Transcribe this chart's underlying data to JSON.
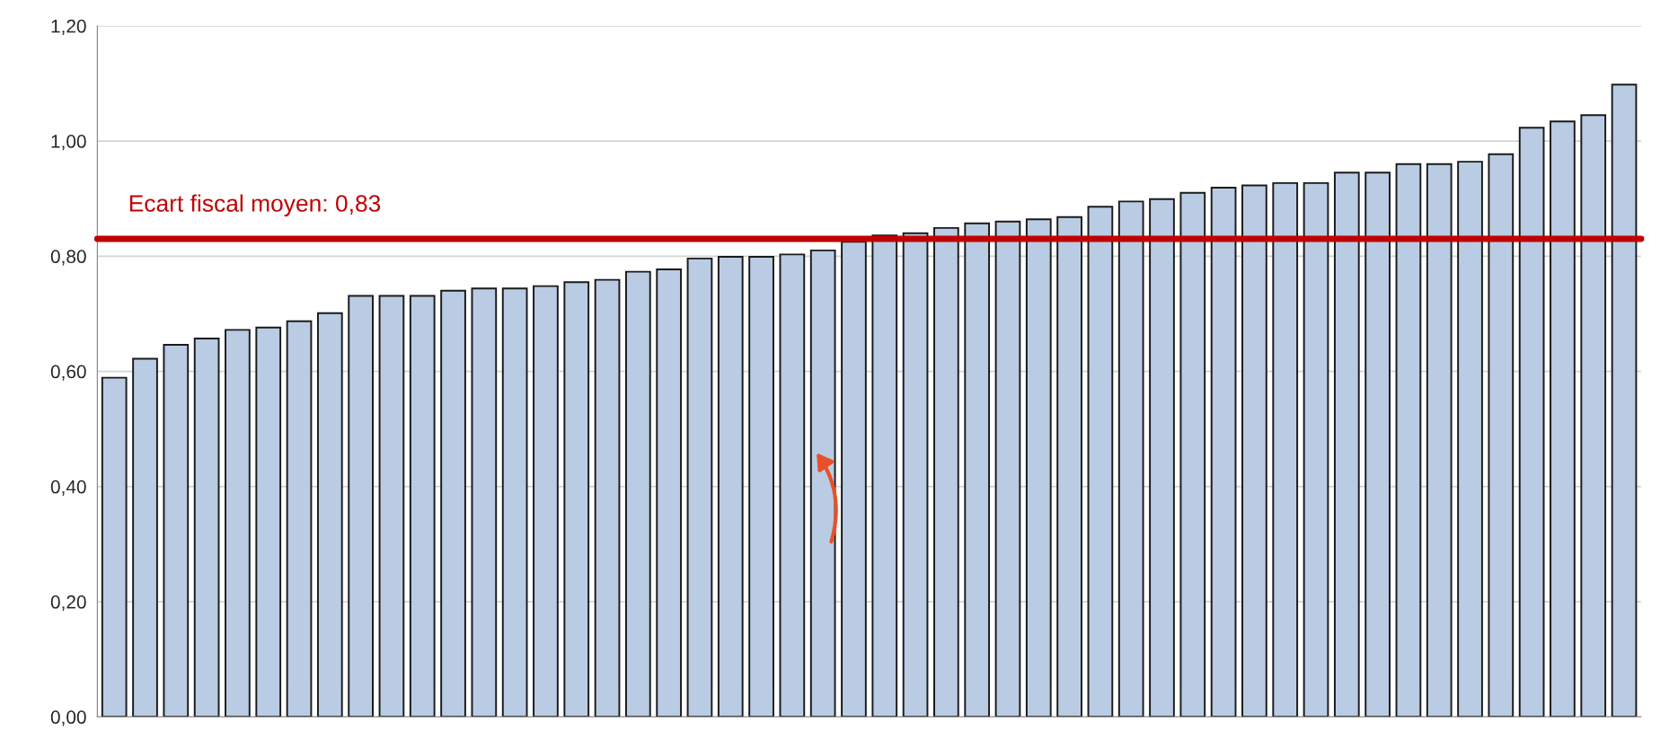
{
  "chart_data": {
    "type": "bar",
    "categories": [
      null,
      null,
      null,
      null,
      null,
      null,
      null,
      null,
      null,
      null,
      null,
      null,
      null,
      null,
      null,
      null,
      null,
      null,
      null,
      null,
      null,
      null,
      null,
      null,
      null,
      null,
      null,
      null,
      null,
      null,
      null,
      null,
      null,
      null,
      null,
      null,
      null,
      null,
      null,
      null,
      null,
      null,
      null,
      null,
      null,
      null,
      null,
      null,
      null,
      null
    ],
    "values": [
      0.589,
      0.622,
      0.646,
      0.657,
      0.672,
      0.676,
      0.687,
      0.701,
      0.731,
      0.731,
      0.731,
      0.74,
      0.744,
      0.744,
      0.748,
      0.755,
      0.759,
      0.773,
      0.777,
      0.796,
      0.799,
      0.799,
      0.803,
      0.81,
      0.825,
      0.836,
      0.84,
      0.849,
      0.857,
      0.86,
      0.864,
      0.868,
      0.886,
      0.895,
      0.899,
      0.91,
      0.919,
      0.923,
      0.927,
      0.927,
      0.945,
      0.945,
      0.96,
      0.96,
      0.964,
      0.977,
      1.023,
      1.034,
      1.045,
      1.098
    ],
    "color": "#b9cce4",
    "ylim": [
      0,
      1.2
    ],
    "yticks": [
      {
        "value": 0,
        "label": "0,00"
      },
      {
        "value": 0.2,
        "label": "0,20"
      },
      {
        "value": 0.4,
        "label": "0,40"
      },
      {
        "value": 0.6,
        "label": "0,60"
      },
      {
        "value": 0.8,
        "label": "0,80"
      },
      {
        "value": 1.0,
        "label": "1,00"
      },
      {
        "value": 1.2,
        "label": "1,20"
      }
    ],
    "grid": "y",
    "tick_labels": "y",
    "legend": false,
    "ref_lines": [
      {
        "axis": "y",
        "value": 0.83,
        "label": "Ecart fiscal moyen: 0,83",
        "color": "#c00000"
      }
    ]
  }
}
